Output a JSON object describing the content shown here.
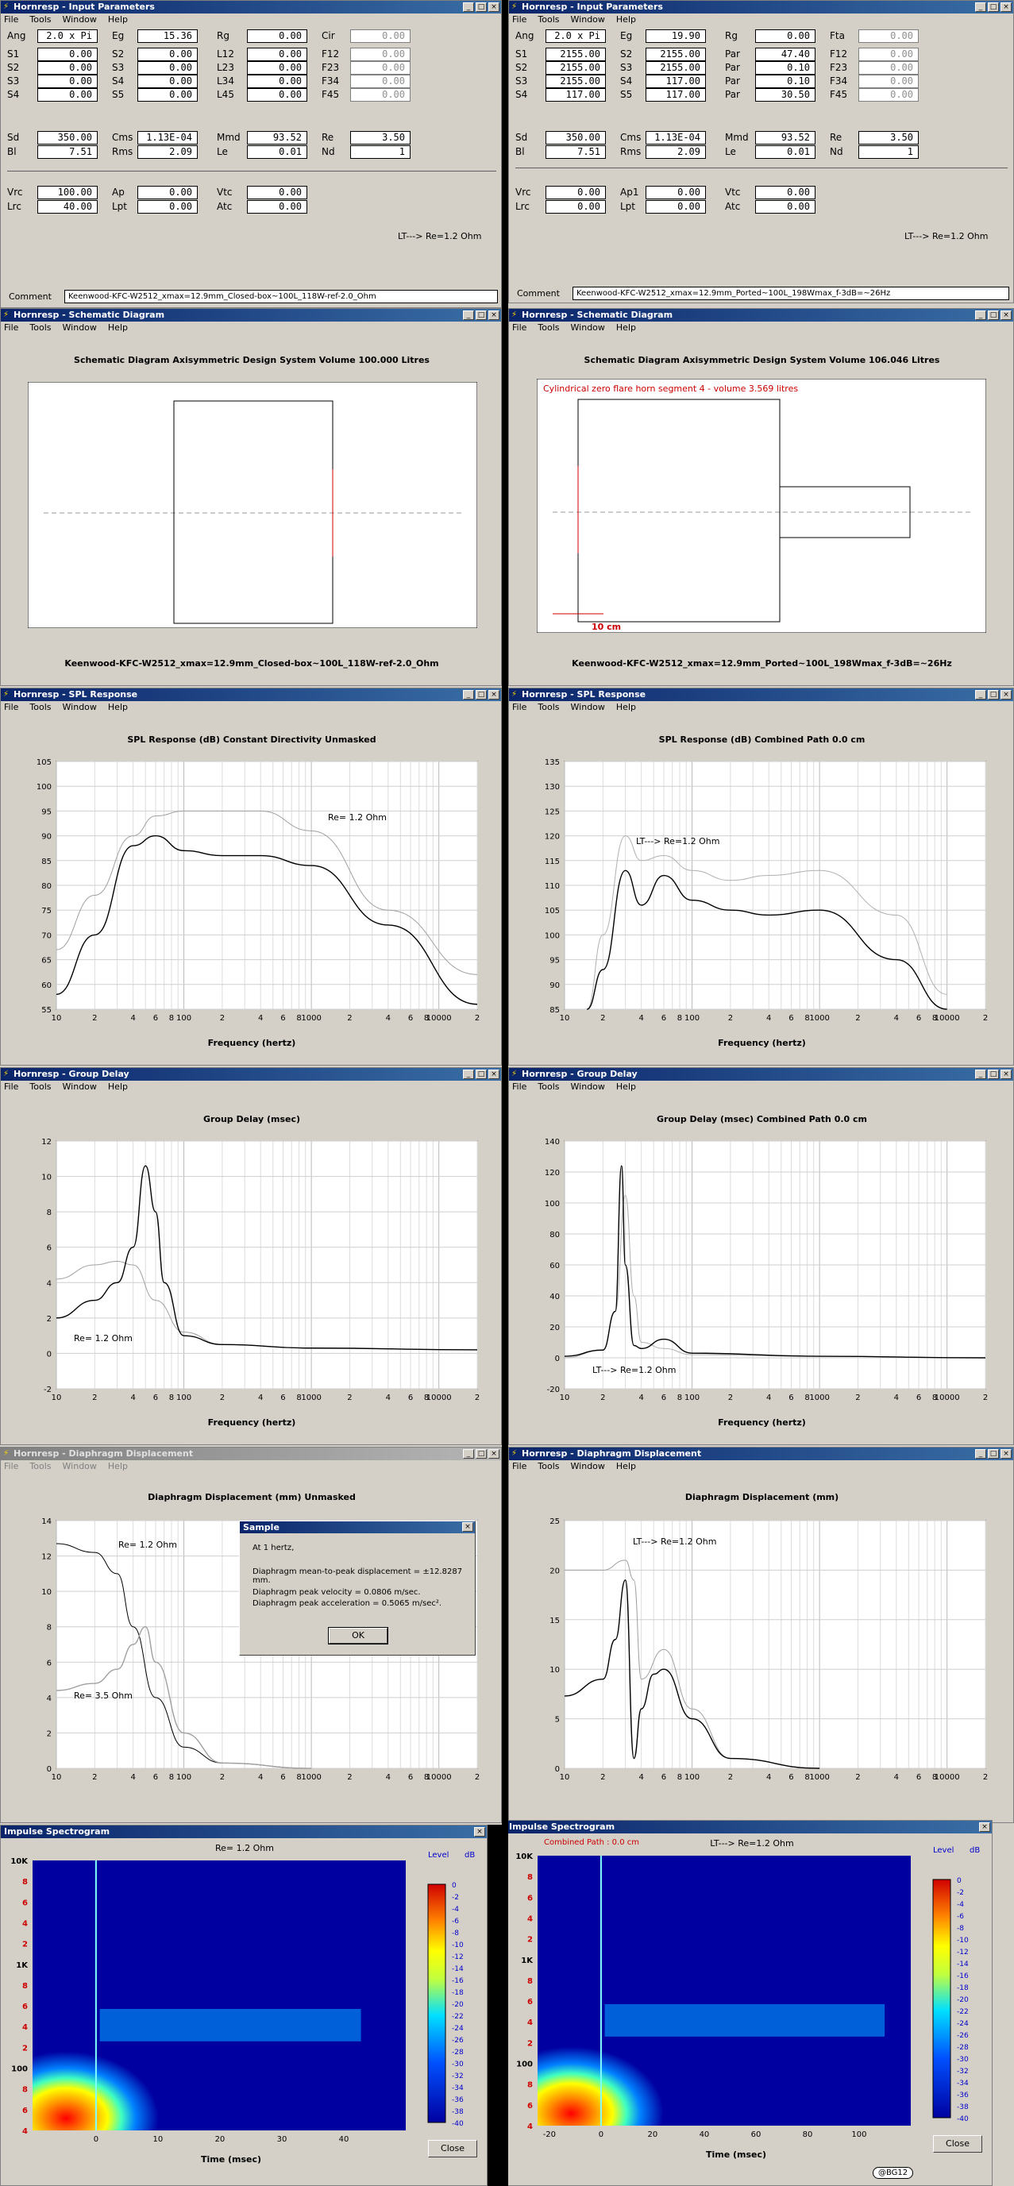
{
  "input_left": {
    "title": "Hornresp - Input Parameters",
    "menu": [
      "File",
      "Tools",
      "Window",
      "Help"
    ],
    "fields": [
      [
        "Ang",
        "2.0 x Pi",
        "Eg",
        "15.36",
        "Rg",
        "0.00",
        "Cir",
        "0.00"
      ],
      [
        "S1",
        "0.00",
        "S2",
        "0.00",
        "L12",
        "0.00",
        "F12",
        "0.00"
      ],
      [
        "S2",
        "0.00",
        "S3",
        "0.00",
        "L23",
        "0.00",
        "F23",
        "0.00"
      ],
      [
        "S3",
        "0.00",
        "S4",
        "0.00",
        "L34",
        "0.00",
        "F34",
        "0.00"
      ],
      [
        "S4",
        "0.00",
        "S5",
        "0.00",
        "L45",
        "0.00",
        "F45",
        "0.00"
      ],
      [
        "Sd",
        "350.00",
        "Cms",
        "1.13E-04",
        "Mmd",
        "93.52",
        "Re",
        "3.50"
      ],
      [
        "Bl",
        "7.51",
        "Rms",
        "2.09",
        "Le",
        "0.01",
        "Nd",
        "1"
      ],
      [
        "Vrc",
        "100.00",
        "Ap",
        "0.00",
        "Vtc",
        "0.00"
      ],
      [
        "Lrc",
        "40.00",
        "Lpt",
        "0.00",
        "Atc",
        "0.00"
      ]
    ],
    "note": "LT---> Re=1.2 Ohm",
    "comment_label": "Comment",
    "comment": "Keenwood-KFC-W2512_xmax=12.9mm_Closed-box~100L_118W-ref-2.0_Ohm"
  },
  "input_right": {
    "title": "Hornresp - Input Parameters",
    "menu": [
      "File",
      "Tools",
      "Window",
      "Help"
    ],
    "fields": [
      [
        "Ang",
        "2.0 x Pi",
        "Eg",
        "19.90",
        "Rg",
        "0.00",
        "Fta",
        "0.00"
      ],
      [
        "S1",
        "2155.00",
        "S2",
        "2155.00",
        "Par",
        "47.40",
        "F12",
        "0.00"
      ],
      [
        "S2",
        "2155.00",
        "S3",
        "2155.00",
        "Par",
        "0.10",
        "F23",
        "0.00"
      ],
      [
        "S3",
        "2155.00",
        "S4",
        "117.00",
        "Par",
        "0.10",
        "F34",
        "0.00"
      ],
      [
        "S4",
        "117.00",
        "S5",
        "117.00",
        "Par",
        "30.50",
        "F45",
        "0.00"
      ],
      [
        "Sd",
        "350.00",
        "Cms",
        "1.13E-04",
        "Mmd",
        "93.52",
        "Re",
        "3.50"
      ],
      [
        "Bl",
        "7.51",
        "Rms",
        "2.09",
        "Le",
        "0.01",
        "Nd",
        "1"
      ],
      [
        "Vrc",
        "0.00",
        "Ap1",
        "0.00",
        "Vtc",
        "0.00"
      ],
      [
        "Lrc",
        "0.00",
        "Lpt",
        "0.00",
        "Atc",
        "0.00"
      ]
    ],
    "note": "LT---> Re=1.2 Ohm",
    "comment_label": "Comment",
    "comment": "Keenwood-KFC-W2512_xmax=12.9mm_Ported~100L_198Wmax_f-3dB=~26Hz"
  },
  "schem_left": {
    "title": "Hornresp - Schematic Diagram",
    "menu": [
      "File",
      "Tools",
      "Window",
      "Help"
    ],
    "heading": "Schematic Diagram   Axisymmetric Design   System Volume 100.000 Litres",
    "caption": "Keenwood-KFC-W2512_xmax=12.9mm_Closed-box~100L_118W-ref-2.0_Ohm"
  },
  "schem_right": {
    "title": "Hornresp - Schematic Diagram",
    "menu": [
      "File",
      "Tools",
      "Window",
      "Help"
    ],
    "heading": "Schematic Diagram   Axisymmetric Design   System Volume 106.046 Litres",
    "segment": "Cylindrical zero flare horn segment 4 - volume 3.569 litres",
    "scale": "10 cm",
    "caption": "Keenwood-KFC-W2512_xmax=12.9mm_Ported~100L_198Wmax_f-3dB=~26Hz",
    "accent": "#cc0000"
  },
  "spl_left": {
    "title": "Hornresp - SPL Response",
    "menu": [
      "File",
      "Tools",
      "Window",
      "Help"
    ],
    "heading": "SPL Response (dB)   Constant Directivity   Unmasked",
    "xlabel": "Frequency (hertz)",
    "label": "Re= 1.2 Ohm"
  },
  "spl_right": {
    "title": "Hornresp - SPL Response",
    "menu": [
      "File",
      "Tools",
      "Window",
      "Help"
    ],
    "heading": "SPL Response (dB)   Combined   Path 0.0 cm",
    "xlabel": "Frequency (hertz)",
    "label": "LT---> Re=1.2 Ohm"
  },
  "gd_left": {
    "title": "Hornresp - Group Delay",
    "menu": [
      "File",
      "Tools",
      "Window",
      "Help"
    ],
    "heading": "Group Delay (msec)",
    "xlabel": "Frequency (hertz)",
    "label": "Re= 1.2 Ohm"
  },
  "gd_right": {
    "title": "Hornresp - Group Delay",
    "menu": [
      "File",
      "Tools",
      "Window",
      "Help"
    ],
    "heading": "Group Delay (msec)   Combined   Path 0.0 cm",
    "xlabel": "Frequency (hertz)",
    "label": "LT---> Re=1.2 Ohm"
  },
  "dd_left": {
    "title": "Hornresp - Diaphragm Displacement",
    "menu": [
      "File",
      "Tools",
      "Window",
      "Help"
    ],
    "heading": "Diaphragm Displacement (mm)   Unmasked",
    "label1": "Re= 1.2 Ohm",
    "label2": "Re= 3.5 Ohm"
  },
  "dd_right": {
    "title": "Hornresp - Diaphragm Displacement",
    "menu": [
      "File",
      "Tools",
      "Window",
      "Help"
    ],
    "heading": "Diaphragm Displacement (mm)",
    "label": "LT---> Re=1.2 Ohm"
  },
  "dialog": {
    "title": "Sample",
    "line1": "At 1 hertz,",
    "line2": "Diaphragm mean-to-peak displacement = ±12.8287 mm.",
    "line3": "Diaphragm peak velocity = 0.0806 m/sec.",
    "line4": "Diaphragm peak acceleration = 0.5065 m/sec².",
    "ok": "OK"
  },
  "spec_left": {
    "title": "Impulse Spectrogram",
    "heading": "Re= 1.2 Ohm",
    "xlabel": "Time (msec)",
    "level": "Level",
    "db": "dB",
    "close": "Close",
    "xticks": [
      "0",
      "10",
      "20",
      "30",
      "40"
    ]
  },
  "spec_right": {
    "title": "Impulse Spectrogram",
    "heading": "LT---> Re=1.2 Ohm",
    "subheading": "Combined    Path : 0.0 cm",
    "xlabel": "Time (msec)",
    "level": "Level",
    "db": "dB",
    "close": "Close",
    "xticks": [
      "-20",
      "0",
      "20",
      "40",
      "60",
      "80",
      "100"
    ],
    "badge": "@BG12"
  },
  "colorbar_ticks": [
    "0",
    "-2",
    "-4",
    "-6",
    "-8",
    "-10",
    "-12",
    "-14",
    "-16",
    "-18",
    "-20",
    "-22",
    "-24",
    "-26",
    "-28",
    "-30",
    "-32",
    "-34",
    "-36",
    "-38",
    "-40"
  ],
  "freq_ticks": [
    "10",
    "2",
    "4",
    "6",
    "8",
    "100",
    "2",
    "4",
    "6",
    "8",
    "1000",
    "2",
    "4",
    "6",
    "8",
    "10000",
    "2"
  ],
  "spec_yticks": [
    "10K",
    "8",
    "6",
    "4",
    "2",
    "1K",
    "8",
    "6",
    "4",
    "2",
    "100",
    "8",
    "6",
    "4"
  ],
  "chart_data": [
    {
      "type": "line",
      "title": "SPL Response (dB)   Constant Directivity   Unmasked",
      "xlabel": "Frequency (hertz)",
      "ylim": [
        55,
        105
      ],
      "x_scale": "log",
      "xlim": [
        10,
        20000
      ],
      "series": [
        {
          "name": "Re= 1.2 Ohm",
          "x": [
            10,
            20,
            40,
            60,
            100,
            200,
            400,
            1000,
            4000,
            20000
          ],
          "y": [
            67,
            78,
            90,
            94,
            95,
            95,
            95,
            91,
            75,
            62
          ]
        },
        {
          "x": [
            10,
            20,
            40,
            60,
            100,
            200,
            400,
            1000,
            4000,
            20000
          ],
          "y": [
            58,
            70,
            88,
            90,
            87,
            86,
            86,
            84,
            72,
            56
          ]
        }
      ]
    },
    {
      "type": "line",
      "title": "SPL Response (dB)   Combined   Path 0.0 cm",
      "xlabel": "Frequency (hertz)",
      "ylim": [
        85,
        135
      ],
      "x_scale": "log",
      "xlim": [
        10,
        20000
      ],
      "series": [
        {
          "name": "LT---> Re=1.2 Ohm",
          "x": [
            15,
            20,
            30,
            40,
            60,
            100,
            200,
            400,
            1000,
            4000,
            10000
          ],
          "y": [
            85,
            100,
            120,
            115,
            116,
            113,
            111,
            112,
            113,
            104,
            88
          ]
        },
        {
          "x": [
            15,
            20,
            30,
            40,
            60,
            100,
            200,
            400,
            1000,
            4000,
            10000
          ],
          "y": [
            85,
            93,
            113,
            106,
            112,
            107,
            105,
            104,
            105,
            95,
            85
          ]
        }
      ]
    },
    {
      "type": "line",
      "title": "Group Delay (msec)",
      "xlabel": "Frequency (hertz)",
      "ylim": [
        -2,
        12
      ],
      "x_scale": "log",
      "xlim": [
        10,
        20000
      ],
      "series": [
        {
          "name": "Re= 1.2 Ohm",
          "x": [
            10,
            20,
            30,
            40,
            60,
            100,
            200,
            1000,
            20000
          ],
          "y": [
            4.2,
            5,
            5.2,
            5,
            3,
            1.2,
            0.5,
            0.3,
            0.2
          ]
        },
        {
          "x": [
            10,
            20,
            30,
            40,
            50,
            60,
            70,
            100,
            200,
            1000,
            20000
          ],
          "y": [
            2,
            3,
            4,
            6,
            10.6,
            8,
            4,
            1,
            0.5,
            0.3,
            0.2
          ]
        }
      ]
    },
    {
      "type": "line",
      "title": "Group Delay (msec)   Combined   Path 0.0 cm",
      "xlabel": "Frequency (hertz)",
      "ylim": [
        -20,
        140
      ],
      "x_scale": "log",
      "xlim": [
        10,
        20000
      ],
      "series": [
        {
          "name": "LT---> Re=1.2 Ohm",
          "x": [
            10,
            20,
            25,
            30,
            35,
            40,
            60,
            100,
            1000,
            20000
          ],
          "y": [
            0,
            5,
            30,
            105,
            40,
            10,
            6,
            2,
            1,
            0
          ]
        },
        {
          "x": [
            10,
            20,
            25,
            28,
            30,
            35,
            40,
            60,
            100,
            1000,
            20000
          ],
          "y": [
            1,
            5,
            30,
            124,
            60,
            8,
            6,
            12,
            3,
            1,
            0
          ]
        }
      ]
    },
    {
      "type": "line",
      "title": "Diaphragm Displacement (mm)   Unmasked",
      "ylim": [
        0,
        14
      ],
      "x_scale": "log",
      "xlim": [
        10,
        20000
      ],
      "series": [
        {
          "name": "Re= 1.2 Ohm",
          "x": [
            10,
            20,
            30,
            40,
            60,
            100,
            200,
            1000
          ],
          "y": [
            12.7,
            12.2,
            11,
            8,
            4,
            1.2,
            0.3,
            0
          ]
        },
        {
          "name": "Re= 3.5 Ohm",
          "x": [
            10,
            20,
            30,
            40,
            50,
            60,
            100,
            200,
            1000
          ],
          "y": [
            4.4,
            4.8,
            5.6,
            7,
            8,
            6,
            2,
            0.3,
            0
          ]
        }
      ]
    },
    {
      "type": "line",
      "title": "Diaphragm Displacement (mm)",
      "ylim": [
        0,
        25
      ],
      "x_scale": "log",
      "xlim": [
        10,
        20000
      ],
      "series": [
        {
          "name": "LT---> Re=1.2 Ohm",
          "x": [
            10,
            20,
            30,
            35,
            40,
            60,
            100,
            200,
            1000
          ],
          "y": [
            20,
            20,
            21,
            19,
            9,
            12,
            6,
            1,
            0
          ]
        },
        {
          "x": [
            10,
            20,
            25,
            30,
            35,
            40,
            50,
            60,
            100,
            200,
            1000
          ],
          "y": [
            7.3,
            9,
            13,
            19,
            1,
            6,
            9.5,
            10,
            5,
            1,
            0
          ]
        }
      ]
    }
  ]
}
